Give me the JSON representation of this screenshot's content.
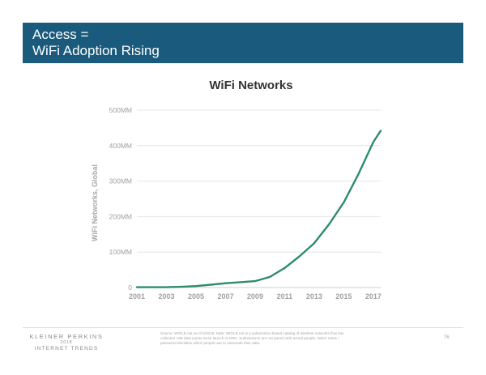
{
  "header": {
    "title_line1": "Access =",
    "title_line2": "WiFi Adoption Rising"
  },
  "chart_data": {
    "type": "line",
    "title": "WiFi Networks",
    "ylabel": "WiFi Networks, Global",
    "xlabel": "",
    "x_ticks": [
      "2001",
      "2003",
      "2005",
      "2007",
      "2009",
      "2011",
      "2013",
      "2015",
      "2017"
    ],
    "y_ticks": [
      "0",
      "100MM",
      "200MM",
      "300MM",
      "400MM",
      "500MM"
    ],
    "xlim": [
      2001,
      2017.5
    ],
    "ylim": [
      0,
      500
    ],
    "grid": true,
    "series": [
      {
        "color": "#2e8b6e",
        "x": [
          2001,
          2002,
          2003,
          2004,
          2005,
          2006,
          2007,
          2008,
          2009,
          2010,
          2011,
          2012,
          2013,
          2014,
          2015,
          2016,
          2017,
          2017.5
        ],
        "y": [
          1,
          1,
          1,
          2,
          4,
          8,
          12,
          15,
          18,
          30,
          55,
          88,
          125,
          178,
          240,
          320,
          410,
          442
        ]
      }
    ]
  },
  "footer": {
    "logo_line1": "KLEINER PERKINS",
    "logo_line2": "2018",
    "logo_line3": "INTERNET TRENDS",
    "source": "Source: WIGLE.net as of 5/2018. Note: WIGLE.net is a submission-based catalog of wireless networks that has collected >6B data points since launch in 2001. Submissions are not paired with actual people, rather name / password identities which people use to associate their data.",
    "page_number": "76"
  }
}
